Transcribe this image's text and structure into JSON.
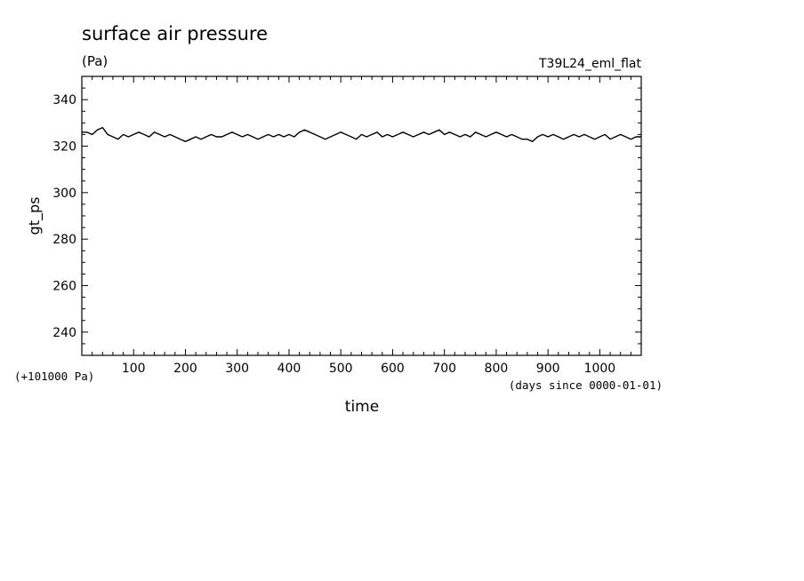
{
  "chart_data": {
    "type": "line",
    "title": "surface air pressure",
    "units": "(Pa)",
    "experiment": "T39L24_eml_flat",
    "ylabel": "gt_ps",
    "xlabel": "time",
    "y_offset_note": "(+101000 Pa)",
    "x_units_note": "(days since 0000-01-01)",
    "xlim": [
      0,
      1080
    ],
    "ylim": [
      230,
      350
    ],
    "x_ticks": [
      100,
      200,
      300,
      400,
      500,
      600,
      700,
      800,
      900,
      1000
    ],
    "y_ticks": [
      240,
      260,
      280,
      300,
      320,
      340
    ],
    "series": [
      {
        "x": [
          0,
          10,
          20,
          30,
          40,
          50,
          60,
          70,
          80,
          90,
          100,
          110,
          120,
          130,
          140,
          150,
          160,
          170,
          180,
          190,
          200,
          210,
          220,
          230,
          240,
          250,
          260,
          270,
          280,
          290,
          300,
          310,
          320,
          330,
          340,
          350,
          360,
          370,
          380,
          390,
          400,
          410,
          420,
          430,
          440,
          450,
          460,
          470,
          480,
          490,
          500,
          510,
          520,
          530,
          540,
          550,
          560,
          570,
          580,
          590,
          600,
          610,
          620,
          630,
          640,
          650,
          660,
          670,
          680,
          690,
          700,
          710,
          720,
          730,
          740,
          750,
          760,
          770,
          780,
          790,
          800,
          810,
          820,
          830,
          840,
          850,
          860,
          870,
          880,
          890,
          900,
          910,
          920,
          930,
          940,
          950,
          960,
          970,
          980,
          990,
          1000,
          1010,
          1020,
          1030,
          1040,
          1050,
          1060,
          1070,
          1080
        ],
        "values": [
          326,
          326,
          325,
          327,
          328,
          325,
          324,
          323,
          325,
          324,
          325,
          326,
          325,
          324,
          326,
          325,
          324,
          325,
          324,
          323,
          322,
          323,
          324,
          323,
          324,
          325,
          324,
          324,
          325,
          326,
          325,
          324,
          325,
          324,
          323,
          324,
          325,
          324,
          325,
          324,
          325,
          324,
          326,
          327,
          326,
          325,
          324,
          323,
          324,
          325,
          326,
          325,
          324,
          323,
          325,
          324,
          325,
          326,
          324,
          325,
          324,
          325,
          326,
          325,
          324,
          325,
          326,
          325,
          326,
          327,
          325,
          326,
          325,
          324,
          325,
          324,
          326,
          325,
          324,
          325,
          326,
          325,
          324,
          325,
          324,
          323,
          323,
          322,
          324,
          325,
          324,
          325,
          324,
          323,
          324,
          325,
          324,
          325,
          324,
          323,
          324,
          325,
          323,
          324,
          325,
          324,
          323,
          324,
          324
        ]
      }
    ]
  }
}
